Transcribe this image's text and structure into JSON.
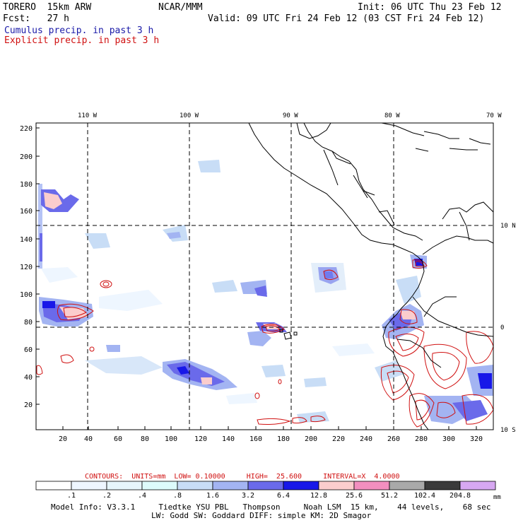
{
  "header": {
    "model": "TORERO  15km ARW",
    "org": "NCAR/MMM",
    "init": "Init: 06 UTC Thu 23 Feb 12",
    "fcst": "Fcst:   27 h",
    "valid": "Valid: 09 UTC Fri 24 Feb 12 (03 CST Fri 24 Feb 12)",
    "line_cumulus": "Cumulus precip. in past 3 h",
    "line_explicit": "Explicit precip. in past 3 h"
  },
  "colors": {
    "cumulus_text": "#1a1aa8",
    "explicit_text": "#d01010",
    "contour": "#d01010",
    "coast": "#000000",
    "grid": "#000000"
  },
  "axes": {
    "top_lon_labels": [
      "110 W",
      "100 W",
      "90 W",
      "80 W",
      "70 W"
    ],
    "right_lat_labels": [
      "10 N",
      "0",
      "10 S"
    ],
    "y_ticks": [
      "220",
      "200",
      "180",
      "160",
      "140",
      "120",
      "100",
      "80",
      "60",
      "40",
      "20"
    ],
    "x_ticks": [
      "20",
      "40",
      "60",
      "80",
      "100",
      "120",
      "140",
      "160",
      "180",
      "200",
      "220",
      "240",
      "260",
      "280",
      "300",
      "320"
    ]
  },
  "contours_line": "CONTOURS:  UNITS=mm  LOW= 0.10000     HIGH=  25.600     INTERVAL=X  4.0000",
  "colorbar": {
    "labels": [
      ".1",
      ".2",
      ".4",
      ".8",
      "1.6",
      "3.2",
      "6.4",
      "12.8",
      "25.6",
      "51.2",
      "102.4",
      "204.8"
    ],
    "unit": "mm",
    "colors": [
      "#ffffff",
      "#eef6ff",
      "#e6f5fb",
      "#ddfbfb",
      "#c8ddf6",
      "#a3b4f2",
      "#6a6aea",
      "#1818e8",
      "#fbcdcd",
      "#f28fbf",
      "#a9a9a9",
      "#3a3a3a",
      "#d7a8f2"
    ]
  },
  "footer": {
    "line1": "Model Info: V3.3.1     Tiedtke YSU PBL   Thompson     Noah LSM  15 km,    44 levels,    68 sec",
    "line2": "LW: Godd SW: Goddard DIFF: simple KM: 2D Smagor"
  }
}
